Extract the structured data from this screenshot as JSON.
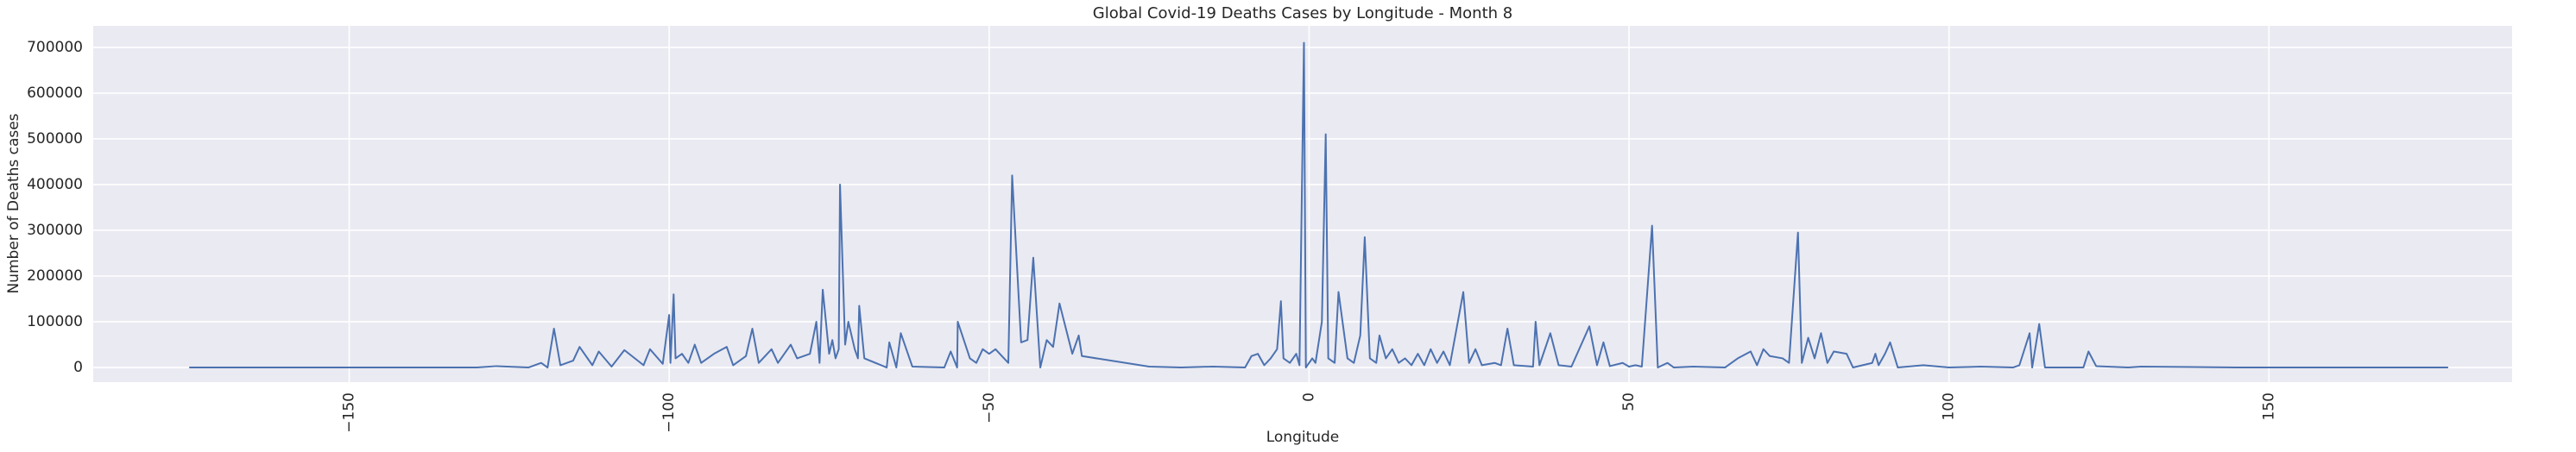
{
  "chart_data": {
    "type": "line",
    "title": "Global Covid-19 Deaths Cases by Longitude - Month 8",
    "xlabel": "Longitude",
    "ylabel": "Number of Deaths cases",
    "x": [
      -175,
      -130,
      -127,
      -122,
      -120,
      -119,
      -118,
      -117,
      -115,
      -114,
      -112,
      -111,
      -109,
      -107,
      -104,
      -103,
      -101,
      -100,
      -99.8,
      -99.3,
      -99,
      -98,
      -97,
      -96,
      -95,
      -93,
      -91,
      -90,
      -88,
      -87,
      -86,
      -84,
      -83,
      -81,
      -80,
      -79,
      -78,
      -77,
      -76.5,
      -76,
      -75,
      -74.5,
      -74,
      -73.5,
      -73.3,
      -72.5,
      -72,
      -71,
      -70.5,
      -70.3,
      -69.5,
      -66,
      -65.6,
      -64.5,
      -63.8,
      -62,
      -57,
      -56,
      -55,
      -54.9,
      -53,
      -52,
      -51,
      -50,
      -49,
      -48,
      -47,
      -46.4,
      -45,
      -44,
      -43.1,
      -42,
      -41,
      -40,
      -39,
      -37,
      -36,
      -35.5,
      -25,
      -20,
      -15,
      -10,
      -9,
      -8,
      -7,
      -6,
      -5,
      -4.4,
      -4,
      -3,
      -2,
      -1.5,
      -0.8,
      -0.5,
      0.5,
      1,
      2,
      2.6,
      3,
      4,
      4.6,
      6,
      7,
      8,
      8.7,
      9.5,
      10.5,
      11,
      12,
      13,
      14,
      15,
      16,
      17,
      18,
      19,
      20,
      21,
      22,
      24.1,
      25,
      26,
      27,
      29,
      30,
      31,
      32,
      35,
      35.4,
      36,
      37.7,
      39,
      41,
      43.8,
      45,
      46,
      47,
      49,
      50,
      51,
      52,
      53.6,
      54.5,
      56,
      57,
      60,
      65,
      66,
      67,
      69,
      70,
      71,
      72,
      74,
      75,
      76.4,
      77,
      78,
      79,
      80,
      81,
      82,
      84,
      85,
      88,
      88.5,
      89,
      90,
      90.8,
      92,
      96,
      100,
      105,
      110,
      111,
      112.6,
      113,
      114.1,
      115,
      121,
      121.8,
      123,
      128,
      130,
      145,
      178
    ],
    "series": [
      {
        "name": "deaths",
        "color": "#4c72b0",
        "values": [
          0,
          0,
          3000,
          0,
          10000,
          0,
          85000,
          5000,
          15000,
          45000,
          5000,
          35000,
          2000,
          38000,
          5000,
          40000,
          8000,
          115000,
          10000,
          160000,
          20000,
          30000,
          10000,
          50000,
          10000,
          30000,
          45000,
          5000,
          25000,
          85000,
          10000,
          40000,
          10000,
          50000,
          20000,
          25000,
          30000,
          100000,
          10000,
          170000,
          30000,
          60000,
          20000,
          40000,
          400000,
          50000,
          100000,
          40000,
          20000,
          135000,
          20000,
          0,
          55000,
          0,
          75000,
          2000,
          0,
          35000,
          0,
          100000,
          20000,
          10000,
          40000,
          30000,
          40000,
          25000,
          10000,
          420000,
          55000,
          60000,
          240000,
          0,
          60000,
          45000,
          140000,
          30000,
          70000,
          25000,
          2000,
          0,
          2000,
          0,
          25000,
          30000,
          5000,
          20000,
          40000,
          145000,
          20000,
          10000,
          30000,
          5000,
          710000,
          0,
          20000,
          10000,
          100000,
          510000,
          20000,
          10000,
          165000,
          20000,
          10000,
          70000,
          285000,
          20000,
          10000,
          70000,
          20000,
          40000,
          10000,
          20000,
          5000,
          30000,
          5000,
          40000,
          10000,
          35000,
          5000,
          165000,
          10000,
          40000,
          5000,
          10000,
          5000,
          85000,
          5000,
          2000,
          100000,
          5000,
          75000,
          5000,
          2000,
          90000,
          5000,
          55000,
          3000,
          10000,
          2000,
          5000,
          2000,
          310000,
          0,
          10000,
          0,
          2000,
          0,
          10000,
          20000,
          35000,
          5000,
          40000,
          25000,
          20000,
          10000,
          295000,
          10000,
          65000,
          20000,
          75000,
          10000,
          35000,
          30000,
          0,
          10000,
          30000,
          5000,
          30000,
          55000,
          0,
          5000,
          0,
          2000,
          0,
          5000,
          75000,
          0,
          95000,
          0,
          0,
          35000,
          3000,
          0,
          2000,
          0,
          0
        ]
      }
    ],
    "xlim": [
      -190,
      188
    ],
    "ylim": [
      -32000,
      747000
    ],
    "xticks": [
      {
        "value": -150,
        "label": "−150"
      },
      {
        "value": -100,
        "label": "−100"
      },
      {
        "value": -50,
        "label": "−50"
      },
      0,
      50,
      100,
      150
    ],
    "yticks": [
      0,
      100000,
      200000,
      300000,
      400000,
      500000,
      600000,
      700000
    ],
    "grid": true
  }
}
